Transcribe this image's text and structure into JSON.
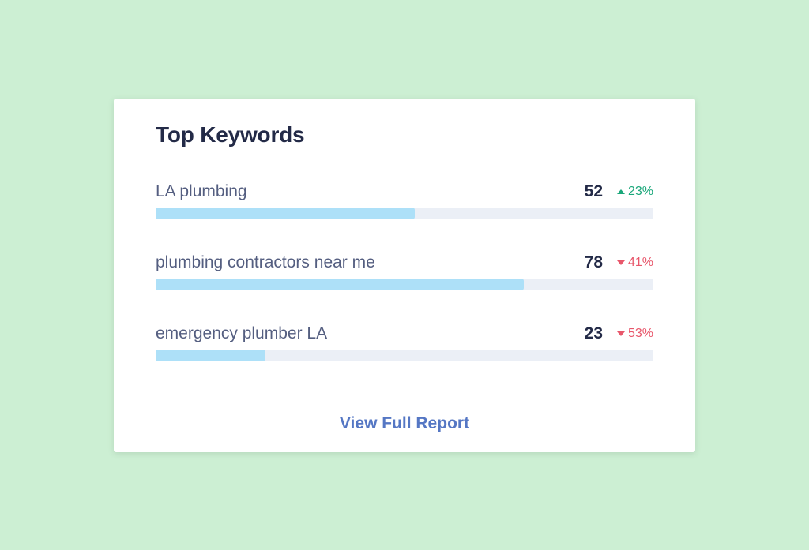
{
  "card": {
    "title": "Top Keywords",
    "footer_link": "View Full Report"
  },
  "keywords": [
    {
      "label": "LA plumbing",
      "value": "52",
      "change": "23%",
      "direction": "up",
      "progress": 0.52
    },
    {
      "label": "plumbing contractors near me",
      "value": "78",
      "change": "41%",
      "direction": "down",
      "progress": 0.74
    },
    {
      "label": "emergency plumber LA",
      "value": "23",
      "change": "53%",
      "direction": "down",
      "progress": 0.22
    }
  ],
  "colors": {
    "background": "#ccefd3",
    "positive": "#1aa77a",
    "negative": "#e8576b",
    "bar_fill": "#ade0f8",
    "bar_track": "#ebeff6",
    "link": "#5577c4"
  }
}
